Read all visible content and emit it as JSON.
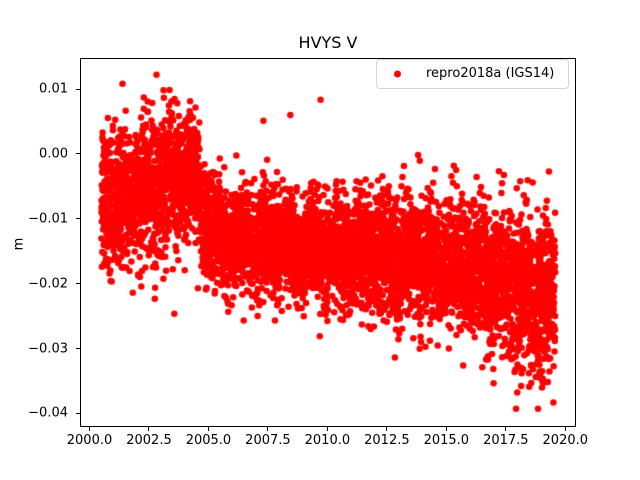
{
  "chart_data": {
    "type": "scatter",
    "title": "HVYS V",
    "xlabel": "",
    "ylabel": "m",
    "legend": {
      "label": "repro2018a (IGS14)",
      "location": "upper right"
    },
    "axes": {
      "xlim": [
        1999.6,
        2020.45
      ],
      "ylim": [
        -0.0421,
        0.0148
      ],
      "xtick_values": [
        2000.0,
        2002.5,
        2005.0,
        2007.5,
        2010.0,
        2012.5,
        2015.0,
        2017.5,
        2020.0
      ],
      "xtick_labels": [
        "2000.0",
        "2002.5",
        "2005.0",
        "2007.5",
        "2010.0",
        "2012.5",
        "2015.0",
        "2017.5",
        "2020.0"
      ],
      "ytick_values": [
        0.01,
        0.0,
        -0.01,
        -0.02,
        -0.03,
        -0.04
      ],
      "ytick_labels": [
        "0.01",
        "0.00",
        "−0.01",
        "−0.02",
        "−0.03",
        "−0.04"
      ],
      "grid": false,
      "frame_color": "#000000",
      "background": "#ffffff"
    },
    "series": [
      {
        "name": "repro2018a (IGS14)",
        "color": "#ff0000",
        "marker": "dot",
        "marker_diameter_px": 6.5,
        "t_start": 2000.5,
        "t_end": 2019.58,
        "n_points": 6200,
        "trend_keyframes": {
          "t": [
            2000.5,
            2001.0,
            2001.5,
            2002.0,
            2002.5,
            2003.0,
            2003.5,
            2004.0,
            2004.5,
            2004.8,
            2005.2,
            2006.0,
            2007.0,
            2008.0,
            2009.0,
            2010.0,
            2011.0,
            2012.0,
            2013.0,
            2014.0,
            2015.0,
            2016.0,
            2017.0,
            2018.0,
            2019.0,
            2019.58
          ],
          "mean": [
            -0.0065,
            -0.007,
            -0.0075,
            -0.006,
            -0.005,
            -0.0045,
            -0.004,
            -0.0035,
            -0.004,
            -0.009,
            -0.012,
            -0.013,
            -0.0135,
            -0.014,
            -0.0145,
            -0.015,
            -0.0155,
            -0.0155,
            -0.016,
            -0.016,
            -0.017,
            -0.018,
            -0.019,
            -0.0205,
            -0.022,
            -0.023
          ],
          "std": [
            0.0055,
            0.0055,
            0.005,
            0.005,
            0.0055,
            0.0055,
            0.0055,
            0.005,
            0.005,
            0.0045,
            0.004,
            0.004,
            0.004,
            0.004,
            0.004,
            0.0042,
            0.0042,
            0.0045,
            0.0045,
            0.0045,
            0.0045,
            0.005,
            0.0055,
            0.006,
            0.0062,
            0.0065
          ]
        },
        "seasonal_amplitude": 0.0012,
        "outlier_probability": 0.006,
        "outlier_scale": 2.2,
        "value_range": [
          -0.0393,
          0.0122
        ],
        "rng_seed": 1234567
      }
    ]
  }
}
